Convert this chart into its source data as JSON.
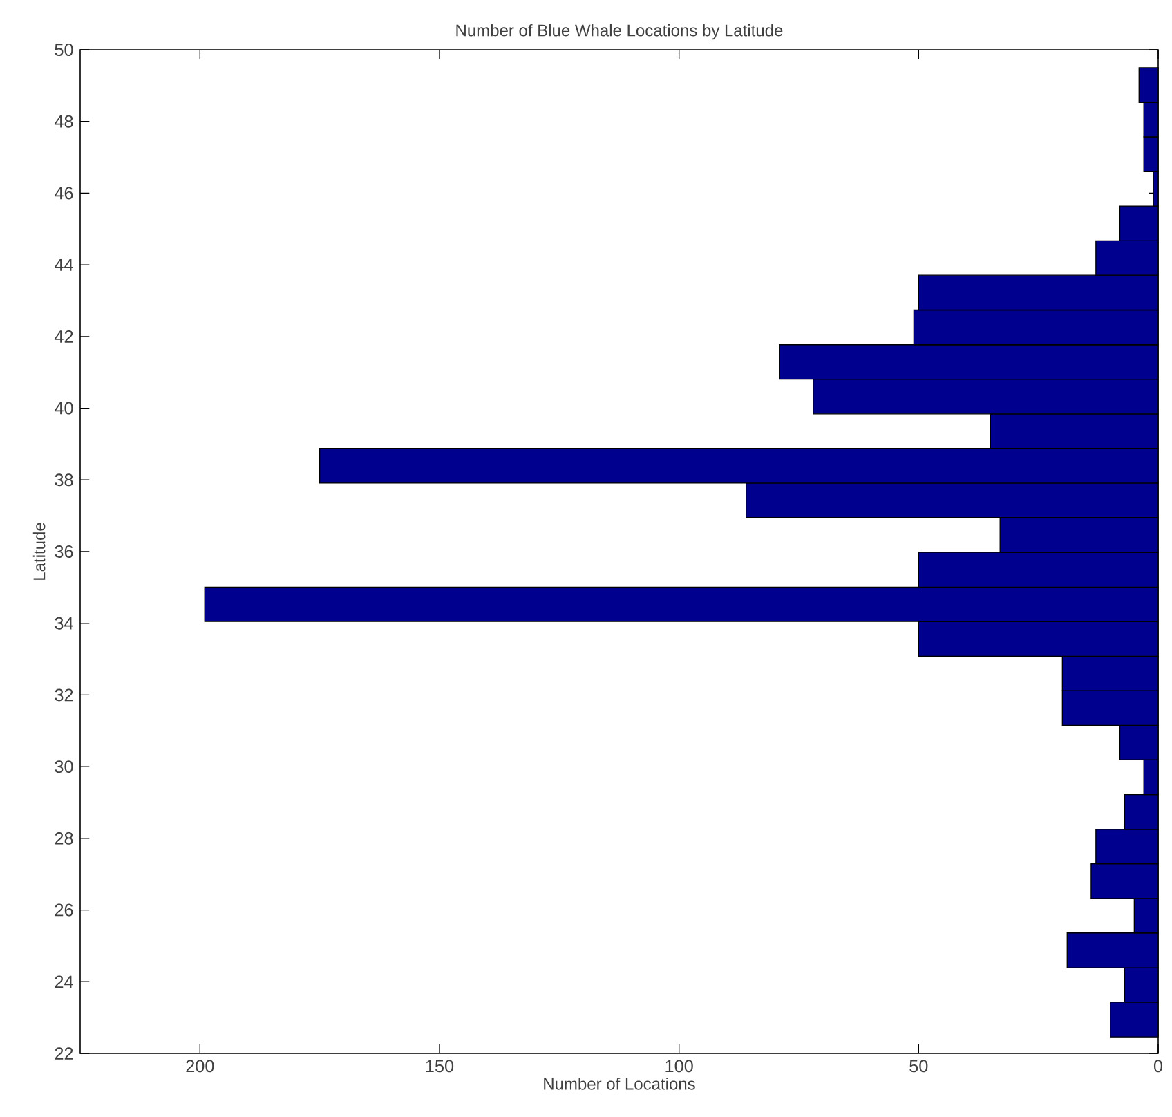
{
  "chart_data": {
    "type": "histogram",
    "title": "Number of Blue Whale Locations by Latitude",
    "xlabel": "Number of Locations",
    "ylabel": "Latitude",
    "orientation": "horizontal",
    "color": "#00008f",
    "bins": [
      22.46,
      23.43,
      24.39,
      25.36,
      26.32,
      27.29,
      28.25,
      29.22,
      30.19,
      31.15,
      32.12,
      33.08,
      34.05,
      35.01,
      35.98,
      36.95,
      37.91,
      38.88,
      39.84,
      40.81,
      41.77,
      42.74,
      43.71,
      44.67,
      45.64,
      46.6,
      47.57,
      48.53,
      49.5
    ],
    "values": [
      10,
      7,
      19,
      5,
      14,
      13,
      7,
      3,
      8,
      20,
      20,
      50,
      199,
      50,
      33,
      86,
      175,
      35,
      72,
      79,
      51,
      50,
      13,
      8,
      1,
      3,
      3,
      4
    ],
    "xlim": [
      225,
      0
    ],
    "ylim": [
      22,
      50
    ],
    "xticks": [
      0,
      50,
      100,
      150,
      200
    ],
    "yticks": [
      22,
      24,
      26,
      28,
      30,
      32,
      34,
      36,
      38,
      40,
      42,
      44,
      46,
      48,
      50
    ]
  }
}
